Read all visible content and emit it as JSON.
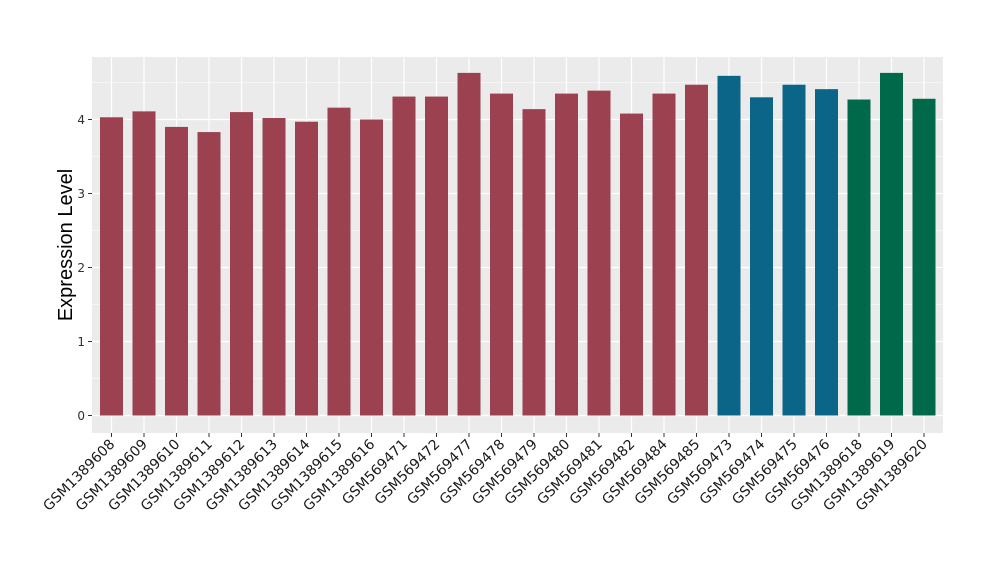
{
  "chart_data": {
    "type": "bar",
    "title": "",
    "xlabel": "",
    "ylabel": "Expression Level",
    "ylim": [
      -0.22,
      4.85
    ],
    "yticks": [
      0,
      1,
      2,
      3,
      4
    ],
    "grid": true,
    "legend": "none",
    "categories": [
      "GSM1389608",
      "GSM1389609",
      "GSM1389610",
      "GSM1389611",
      "GSM1389612",
      "GSM1389613",
      "GSM1389614",
      "GSM1389615",
      "GSM1389616",
      "GSM569471",
      "GSM569472",
      "GSM569477",
      "GSM569478",
      "GSM569479",
      "GSM569480",
      "GSM569481",
      "GSM569482",
      "GSM569484",
      "GSM569485",
      "GSM569473",
      "GSM569474",
      "GSM569475",
      "GSM569476",
      "GSM1389618",
      "GSM1389619",
      "GSM1389620"
    ],
    "values": [
      4.03,
      4.11,
      3.9,
      3.83,
      4.1,
      4.02,
      3.97,
      4.16,
      4.0,
      4.31,
      4.31,
      4.63,
      4.35,
      4.14,
      4.35,
      4.39,
      4.08,
      4.35,
      4.47,
      4.59,
      4.3,
      4.47,
      4.41,
      4.27,
      4.63,
      4.28
    ],
    "bar_colors": [
      "#9b4150",
      "#9b4150",
      "#9b4150",
      "#9b4150",
      "#9b4150",
      "#9b4150",
      "#9b4150",
      "#9b4150",
      "#9b4150",
      "#9b4150",
      "#9b4150",
      "#9b4150",
      "#9b4150",
      "#9b4150",
      "#9b4150",
      "#9b4150",
      "#9b4150",
      "#9b4150",
      "#9b4150",
      "#0b6589",
      "#0b6589",
      "#0b6589",
      "#0b6589",
      "#00694a",
      "#00694a",
      "#00694a"
    ],
    "panel_background": "#ebebeb",
    "grid_color": "#ffffff"
  }
}
